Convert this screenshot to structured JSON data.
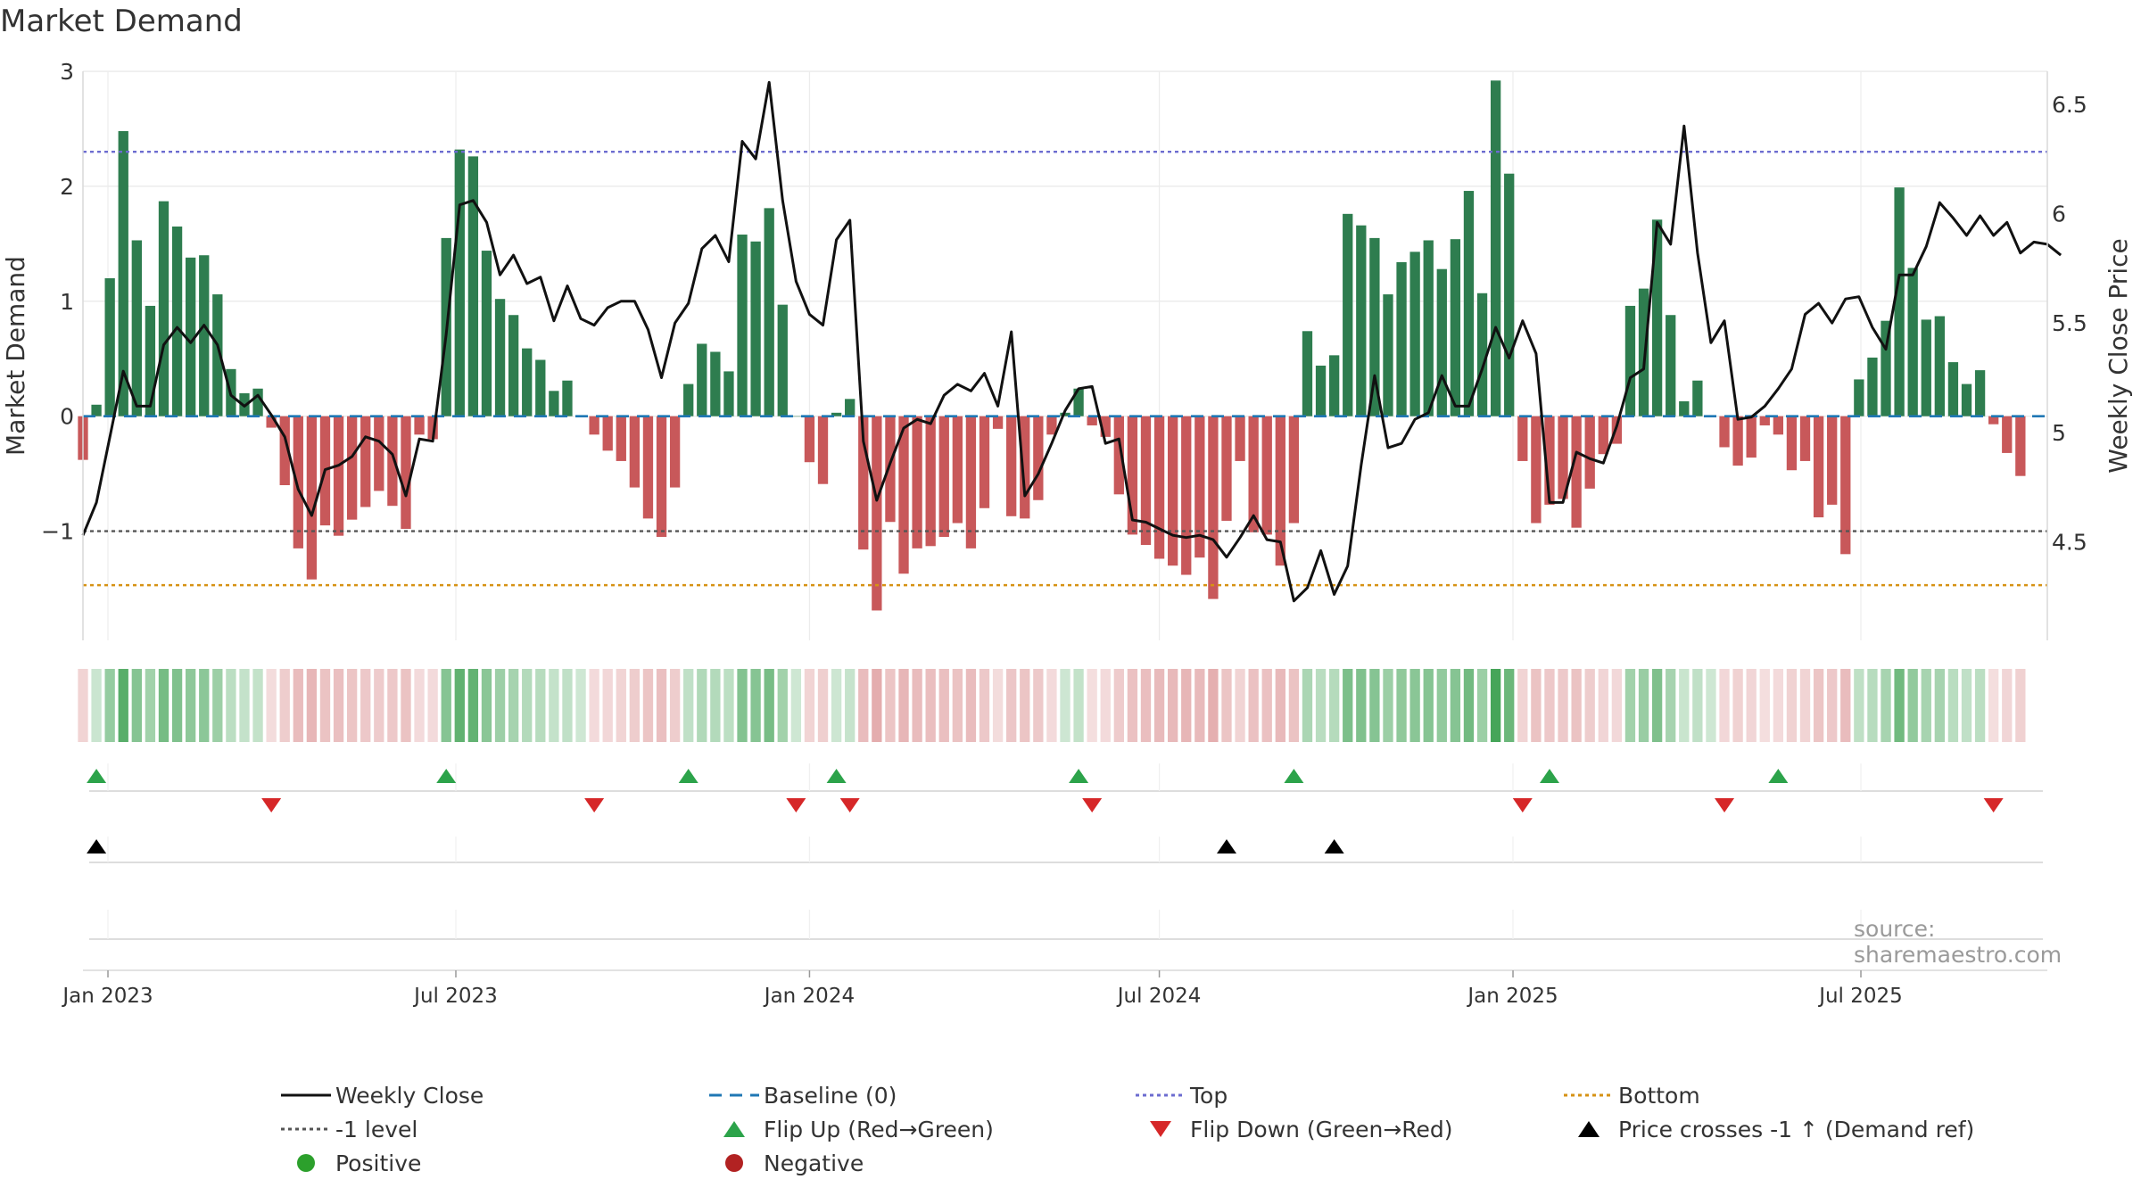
{
  "title": "Market Demand",
  "source": "source: sharemaestro.com",
  "colors": {
    "positive": "#2e7d4f",
    "negative": "#c8585a",
    "price": "#111111",
    "baseline": "#1f77b4",
    "top": "#6c6cd0",
    "bottom": "#d69214",
    "minus1": "#555555",
    "flip_up": "#2ca34a",
    "flip_down": "#d62728",
    "cross": "#000000",
    "pos_dot": "#2ca02c",
    "neg_dot": "#b22222"
  },
  "chart_data": {
    "type": "bar",
    "title": "Market Demand",
    "ylabel": "Market Demand",
    "y2label": "Weekly Close Price",
    "ylim": [
      -1.95,
      3.0
    ],
    "y2lim": [
      4.05,
      6.65
    ],
    "yticks": [
      3,
      2,
      1,
      0,
      -1
    ],
    "ytick_labels": [
      "3",
      "2",
      "1",
      "0",
      "−1"
    ],
    "y2ticks": [
      6.5,
      6,
      5.5,
      5,
      4.5
    ],
    "y2tick_labels": [
      "6.5",
      "6",
      "5.5",
      "5",
      "4.5"
    ],
    "x_start": "2022-12-19",
    "x_end": "2025-10-06",
    "xticks": [
      {
        "date": "2023-01-01",
        "label": "Jan 2023"
      },
      {
        "date": "2023-07-01",
        "label": "Jul 2023"
      },
      {
        "date": "2024-01-01",
        "label": "Jan 2024"
      },
      {
        "date": "2024-07-01",
        "label": "Jul 2024"
      },
      {
        "date": "2025-01-01",
        "label": "Jan 2025"
      },
      {
        "date": "2025-07-01",
        "label": "Jul 2025"
      }
    ],
    "first_week": "2022-12-19",
    "demand": [
      -0.38,
      0.1,
      1.2,
      2.48,
      1.53,
      0.96,
      1.87,
      1.65,
      1.38,
      1.4,
      1.06,
      0.41,
      0.2,
      0.24,
      -0.1,
      -0.6,
      -1.15,
      -1.42,
      -0.95,
      -1.04,
      -0.9,
      -0.79,
      -0.65,
      -0.78,
      -0.98,
      -0.16,
      -0.2,
      1.55,
      2.32,
      2.26,
      1.44,
      1.02,
      0.88,
      0.59,
      0.49,
      0.22,
      0.31,
      0,
      -0.16,
      -0.3,
      -0.39,
      -0.62,
      -0.89,
      -1.05,
      -0.62,
      0.28,
      0.63,
      0.56,
      0.39,
      1.58,
      1.52,
      1.81,
      0.97,
      0,
      -0.4,
      -0.59,
      0.03,
      0.15,
      -1.16,
      -1.69,
      -0.92,
      -1.37,
      -1.15,
      -1.13,
      -1.05,
      -0.93,
      -1.15,
      -0.8,
      -0.11,
      -0.87,
      -0.89,
      -0.73,
      -0.16,
      0.03,
      0.24,
      -0.08,
      -0.18,
      -0.68,
      -1.03,
      -1.12,
      -1.24,
      -1.3,
      -1.38,
      -1.23,
      -1.59,
      -0.91,
      -0.39,
      -1.01,
      -1.03,
      -1.3,
      -0.93,
      0.74,
      0.44,
      0.53,
      1.76,
      1.66,
      1.55,
      1.06,
      1.34,
      1.43,
      1.53,
      1.28,
      1.54,
      1.96,
      1.07,
      2.92,
      2.11,
      -0.39,
      -0.93,
      -0.77,
      -0.72,
      -0.97,
      -0.63,
      -0.33,
      -0.24,
      0.96,
      1.11,
      1.71,
      0.88,
      0.13,
      0.31,
      0,
      -0.27,
      -0.43,
      -0.36,
      -0.08,
      -0.16,
      -0.47,
      -0.39,
      -0.88,
      -0.77,
      -1.2,
      0.32,
      0.51,
      0.83,
      1.99,
      1.29,
      0.84,
      0.87,
      0.47,
      0.28,
      0.4,
      -0.07,
      -0.32,
      -0.52
    ],
    "price": [
      4.53,
      4.68,
      4.98,
      5.28,
      5.12,
      5.12,
      5.4,
      5.48,
      5.41,
      5.49,
      5.4,
      5.17,
      5.12,
      5.17,
      5.08,
      4.98,
      4.74,
      4.62,
      4.83,
      4.85,
      4.89,
      4.98,
      4.96,
      4.9,
      4.71,
      4.97,
      4.96,
      5.45,
      6.04,
      6.06,
      5.96,
      5.72,
      5.81,
      5.68,
      5.71,
      5.51,
      5.67,
      5.52,
      5.49,
      5.57,
      5.6,
      5.6,
      5.47,
      5.25,
      5.5,
      5.59,
      5.84,
      5.9,
      5.78,
      6.33,
      6.25,
      6.6,
      6.06,
      5.69,
      5.54,
      5.49,
      5.88,
      5.97,
      4.96,
      4.69,
      4.86,
      5.02,
      5.06,
      5.04,
      5.17,
      5.22,
      5.19,
      5.27,
      5.12,
      5.46,
      4.71,
      4.81,
      4.95,
      5.1,
      5.2,
      5.21,
      4.95,
      4.97,
      4.6,
      4.59,
      4.56,
      4.53,
      4.52,
      4.53,
      4.51,
      4.43,
      4.52,
      4.62,
      4.51,
      4.5,
      4.23,
      4.29,
      4.46,
      4.26,
      4.39,
      4.85,
      5.26,
      4.93,
      4.95,
      5.06,
      5.09,
      5.26,
      5.12,
      5.12,
      5.29,
      5.48,
      5.34,
      5.51,
      5.36,
      4.68,
      4.68,
      4.91,
      4.88,
      4.86,
      5.03,
      5.25,
      5.29,
      5.96,
      5.86,
      6.4,
      5.82,
      5.41,
      5.51,
      5.06,
      5.07,
      5.12,
      5.2,
      5.29,
      5.54,
      5.59,
      5.5,
      5.61,
      5.62,
      5.48,
      5.38,
      5.72,
      5.72,
      5.85,
      6.05,
      5.98,
      5.9,
      5.99,
      5.9,
      5.96,
      5.82,
      5.87,
      5.86,
      5.81
    ],
    "top_level": 2.3,
    "bottom_level": -1.47,
    "minus1_level": -1,
    "baseline_level": 0,
    "flip_up_weeks": [
      1,
      27,
      45,
      56,
      74,
      90,
      109,
      126
    ],
    "flip_down_weeks": [
      14,
      38,
      53,
      57,
      75,
      107,
      122,
      142
    ],
    "cross_weeks": [
      1,
      85,
      93
    ],
    "legend": [
      {
        "key": "price",
        "label": "Weekly Close"
      },
      {
        "key": "baseline",
        "label": "Baseline (0)"
      },
      {
        "key": "top",
        "label": "Top"
      },
      {
        "key": "bottom",
        "label": "Bottom"
      },
      {
        "key": "minus1",
        "label": "-1 level"
      },
      {
        "key": "flip_up",
        "label": "Flip Up (Red→Green)"
      },
      {
        "key": "flip_down",
        "label": "Flip Down (Green→Red)"
      },
      {
        "key": "cross",
        "label": "Price crosses -1 ↑ (Demand ref)"
      },
      {
        "key": "pos_dot",
        "label": "Positive"
      },
      {
        "key": "neg_dot",
        "label": "Negative"
      }
    ]
  }
}
